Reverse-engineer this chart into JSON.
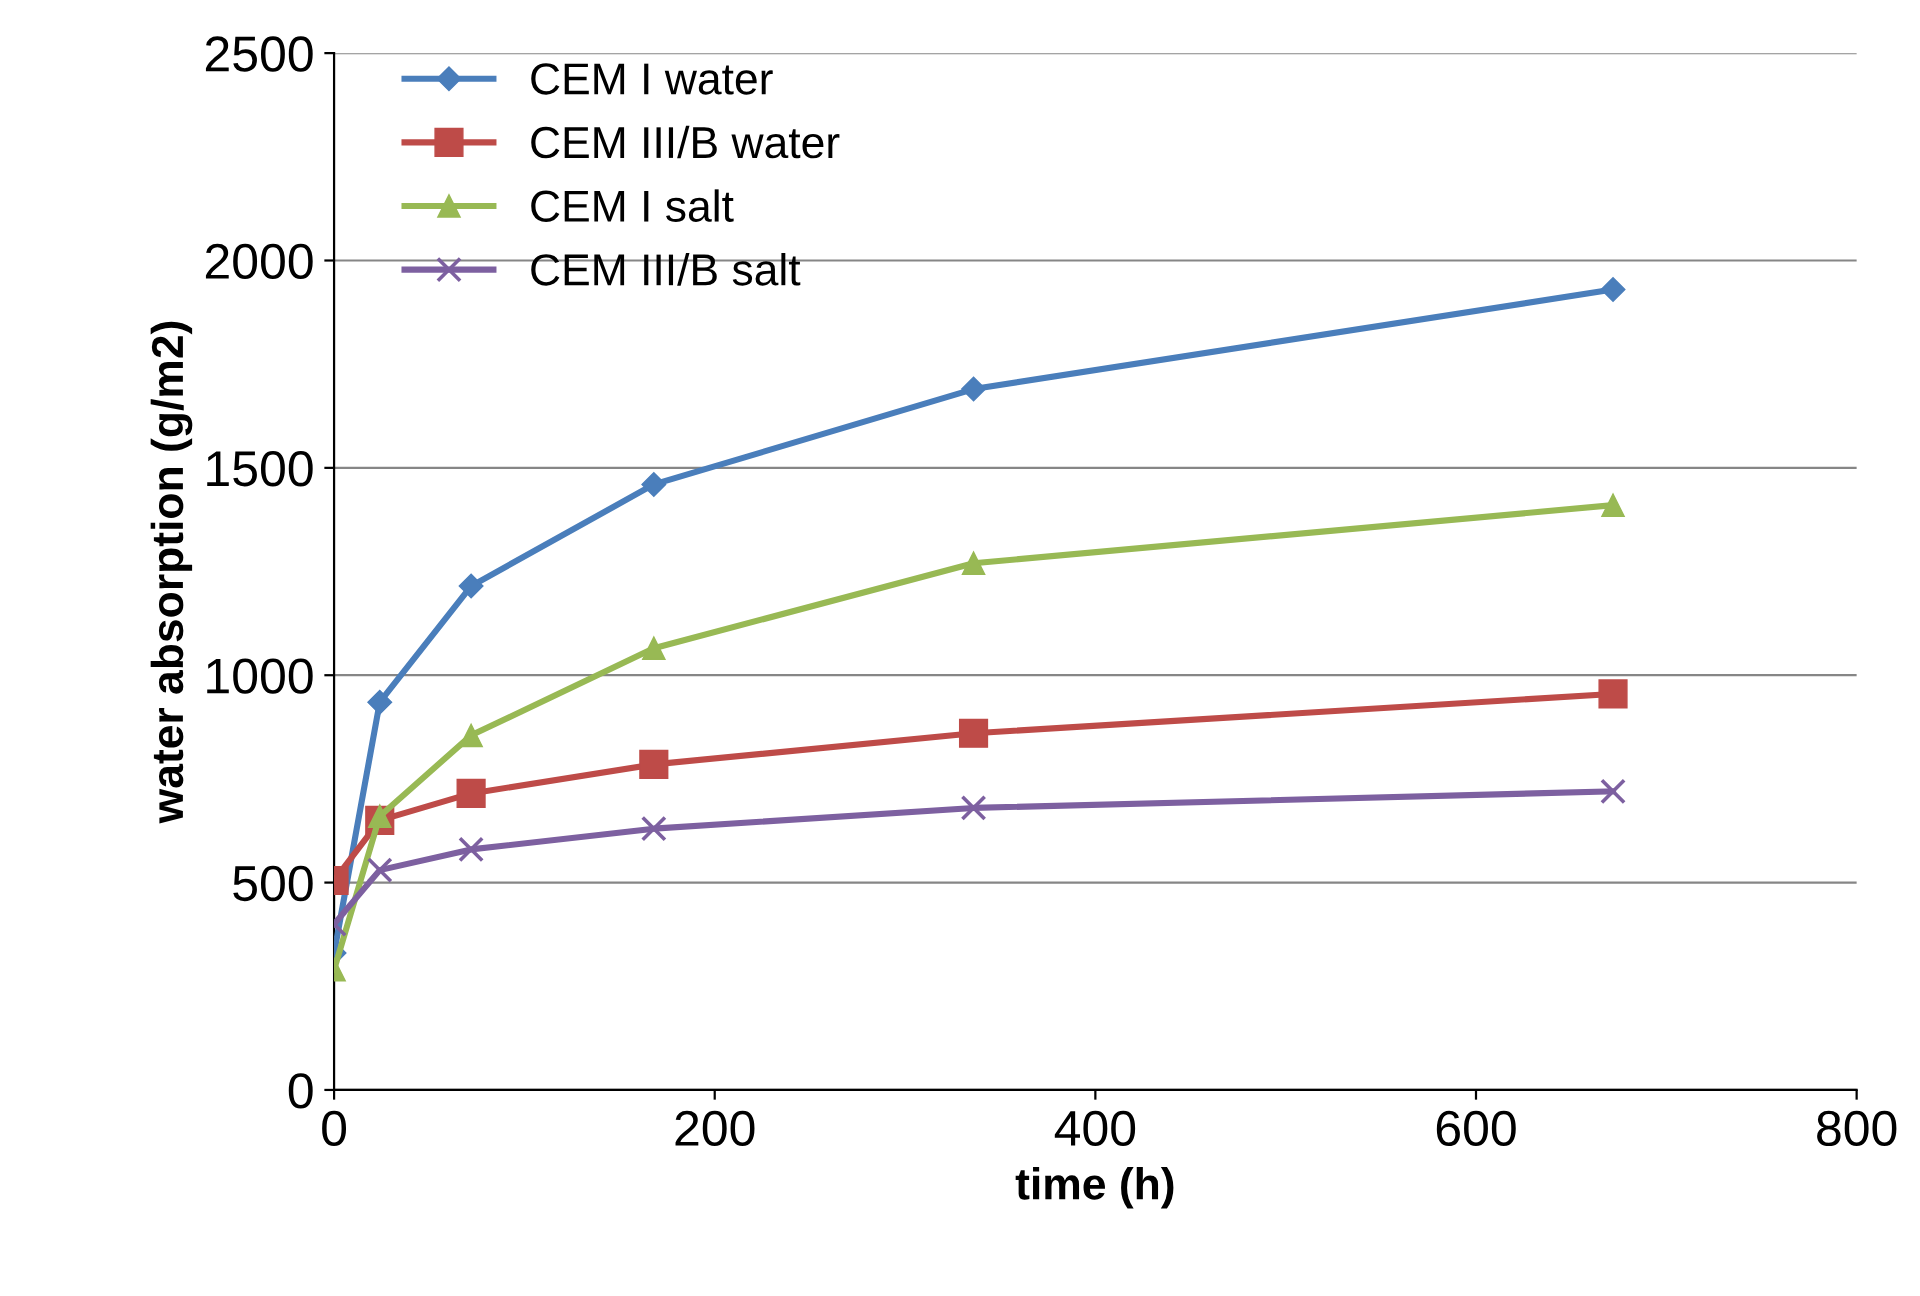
{
  "chart_data": {
    "type": "line",
    "xlabel": "time (h)",
    "ylabel": "water absorption (g/m2)",
    "x": [
      0,
      24,
      72,
      168,
      336,
      672
    ],
    "series": [
      {
        "name": "CEM I water",
        "color": "#4a7ebb",
        "marker": "diamond",
        "values": [
          330,
          935,
          1215,
          1460,
          1690,
          1930
        ]
      },
      {
        "name": "CEM III/B water",
        "color": "#be4b48",
        "marker": "square",
        "values": [
          505,
          650,
          715,
          785,
          860,
          955
        ]
      },
      {
        "name": "CEM I salt",
        "color": "#98b954",
        "marker": "triangle",
        "values": [
          290,
          660,
          855,
          1065,
          1270,
          1410
        ]
      },
      {
        "name": "CEM III/B salt",
        "color": "#7d60a0",
        "marker": "cross",
        "values": [
          400,
          530,
          580,
          630,
          680,
          720
        ]
      }
    ],
    "xlim": [
      0,
      800
    ],
    "xticks": [
      0,
      200,
      400,
      600,
      800
    ],
    "ylim": [
      0,
      2500
    ],
    "yticks": [
      0,
      500,
      1000,
      1500,
      2000,
      2500
    ],
    "grid": "y",
    "legend": "top left",
    "line_style": "solid"
  }
}
